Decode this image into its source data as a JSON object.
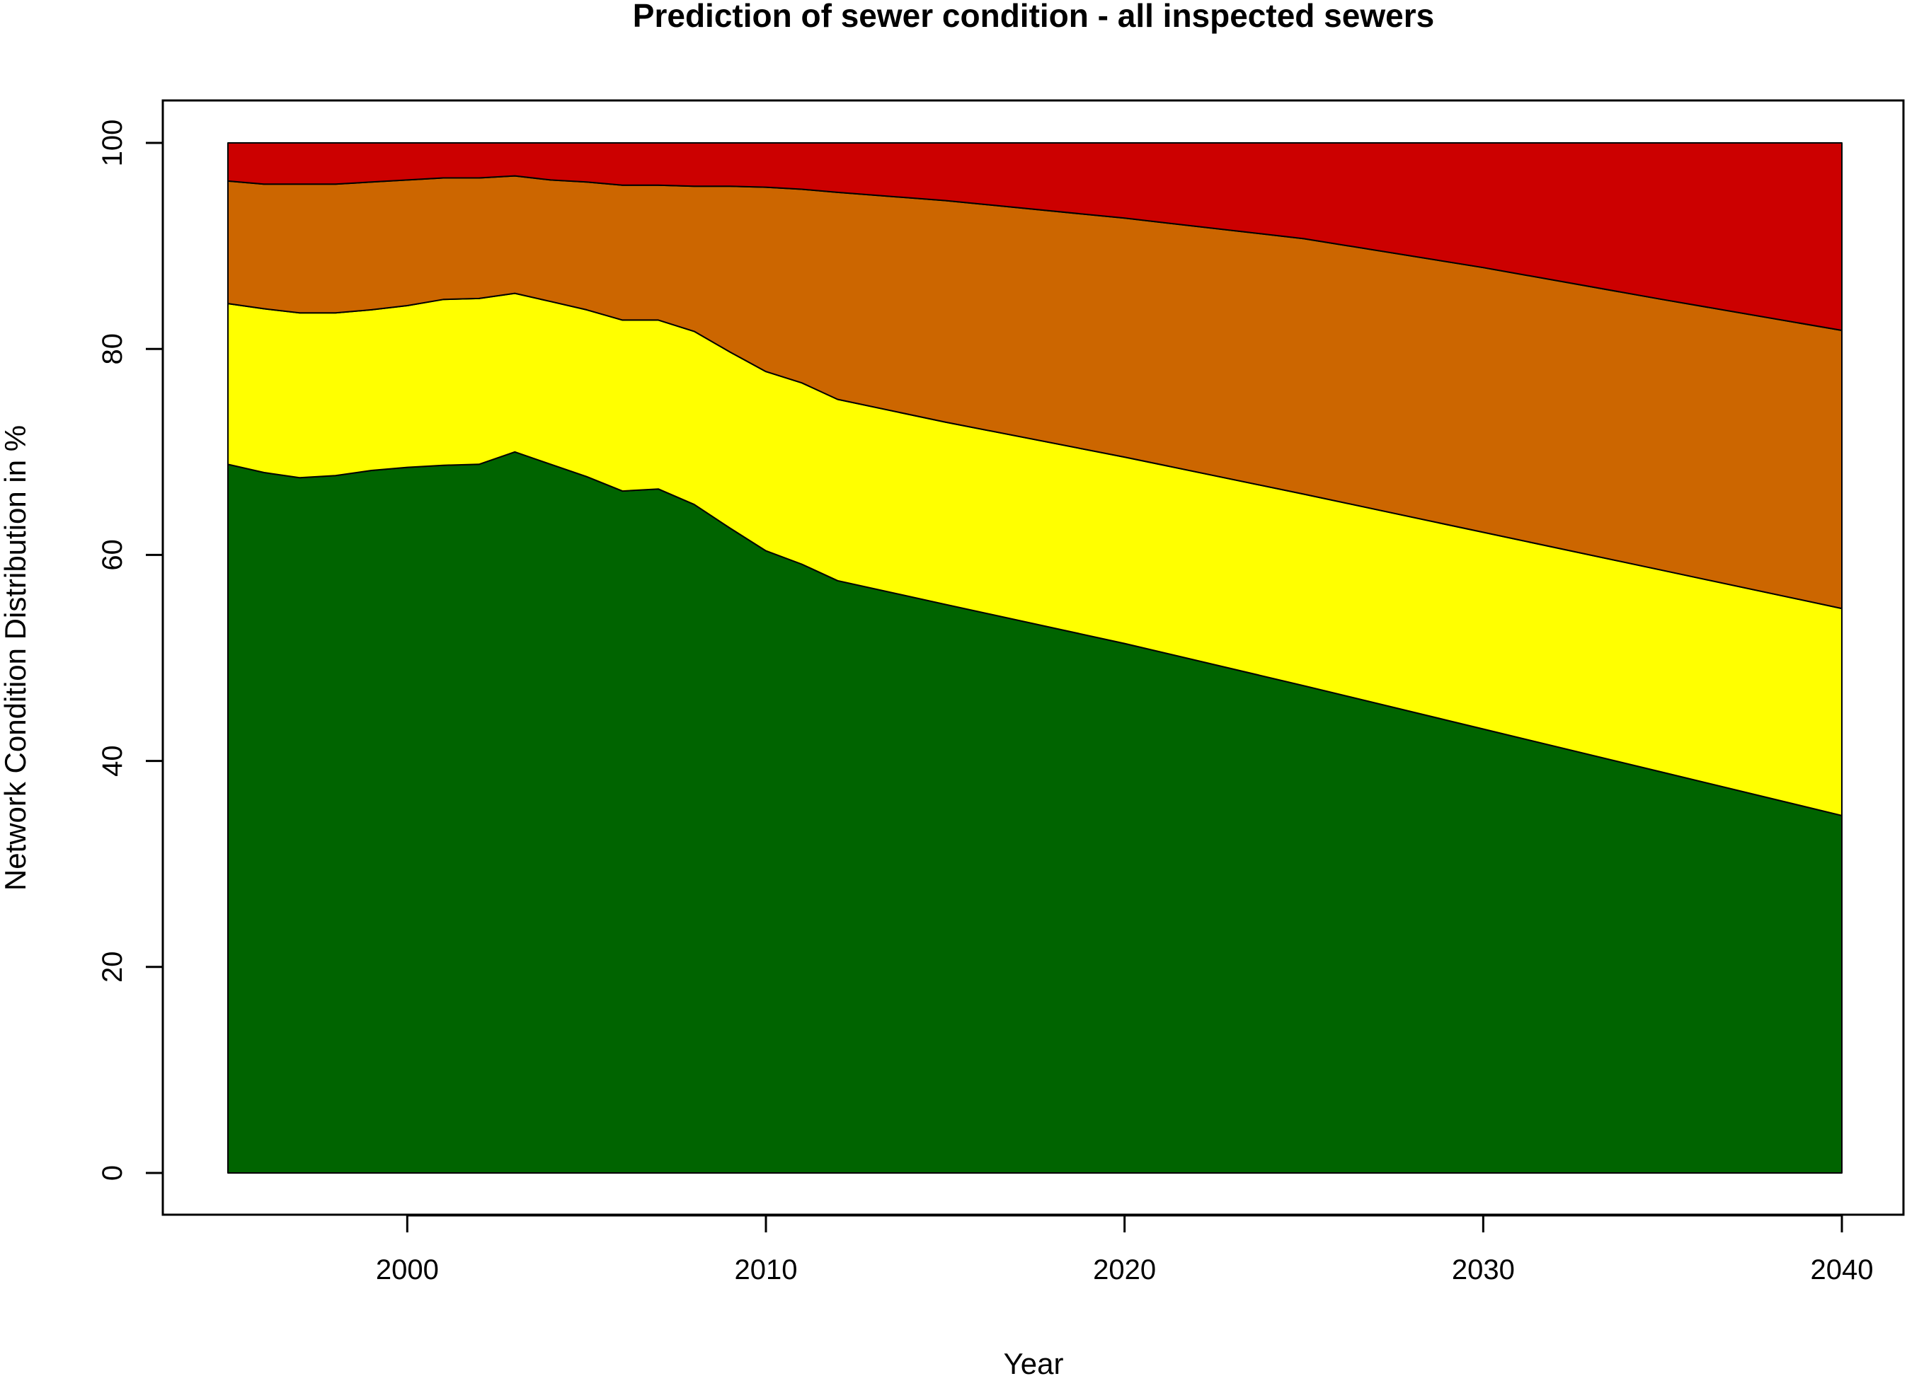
{
  "chart_data": {
    "type": "area",
    "stacked": true,
    "title": "Prediction of sewer condition - all inspected sewers",
    "xlabel": "Year",
    "ylabel": "Network Condition Distribution in %",
    "xlim": [
      1995,
      2040
    ],
    "ylim": [
      0,
      100
    ],
    "xticks": [
      2000,
      2010,
      2020,
      2030,
      2040
    ],
    "yticks": [
      0,
      20,
      40,
      60,
      80,
      100
    ],
    "grid": false,
    "legend": "none",
    "x": [
      1995,
      1996,
      1997,
      1998,
      1999,
      2000,
      2001,
      2002,
      2003,
      2004,
      2005,
      2006,
      2007,
      2008,
      2009,
      2010,
      2011,
      2012,
      2015,
      2020,
      2025,
      2030,
      2035,
      2040
    ],
    "series": [
      {
        "color": "#006400",
        "values": [
          68.8,
          68.0,
          67.5,
          67.7,
          68.2,
          68.5,
          68.7,
          68.8,
          70.0,
          68.8,
          67.6,
          66.2,
          66.4,
          64.9,
          62.6,
          60.4,
          59.1,
          57.5,
          55.2,
          51.4,
          47.3,
          43.1,
          38.9,
          34.7
        ]
      },
      {
        "color": "#ffff00",
        "values": [
          15.6,
          15.9,
          16.0,
          15.8,
          15.6,
          15.7,
          16.1,
          16.1,
          15.4,
          15.8,
          16.2,
          16.6,
          16.4,
          16.8,
          17.1,
          17.4,
          17.6,
          17.6,
          17.7,
          18.1,
          18.6,
          19.1,
          19.6,
          20.1
        ]
      },
      {
        "color": "#cc6600",
        "values": [
          11.9,
          12.1,
          12.5,
          12.5,
          12.4,
          12.2,
          11.8,
          11.7,
          11.4,
          11.8,
          12.4,
          13.1,
          13.1,
          14.1,
          16.1,
          17.9,
          18.8,
          20.1,
          21.5,
          23.2,
          24.8,
          25.7,
          26.3,
          27.0
        ]
      },
      {
        "color": "#cc0000",
        "values": [
          3.7,
          4.0,
          4.0,
          4.0,
          3.8,
          3.6,
          3.4,
          3.4,
          3.2,
          3.6,
          3.8,
          4.1,
          4.1,
          4.2,
          4.2,
          4.3,
          4.5,
          4.8,
          5.6,
          7.3,
          9.3,
          12.1,
          15.2,
          18.2
        ]
      }
    ]
  }
}
